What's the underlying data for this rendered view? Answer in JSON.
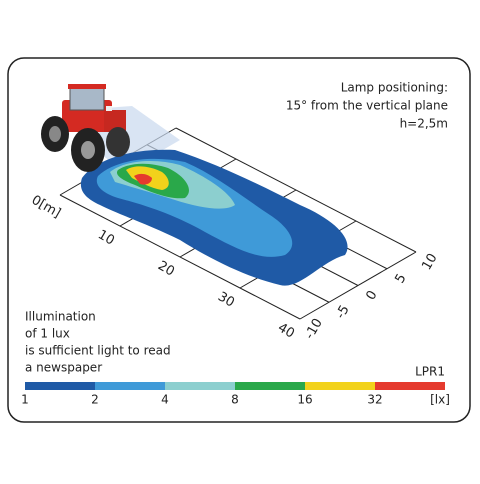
{
  "annotation": {
    "lines": [
      "Lamp positioning:",
      "15° from the vertical plane",
      "h=2,5m"
    ]
  },
  "note": {
    "lines": [
      "Illumination",
      "of 1 lux",
      "is sufficient light to read",
      "a newspaper"
    ]
  },
  "x_axis": {
    "labels": [
      "0[m]",
      "10",
      "20",
      "30",
      "40"
    ]
  },
  "y_axis": {
    "labels": [
      "10",
      "5",
      "0",
      "-5",
      "-10"
    ]
  },
  "scale": {
    "name": "LPR1",
    "unit": "[lx]",
    "ticks": [
      "1",
      "2",
      "4",
      "8",
      "16",
      "32"
    ],
    "colors": [
      "#1f5aa6",
      "#3f9ad8",
      "#8ccfcf",
      "#2aa84a",
      "#f2d21b",
      "#e53a2e"
    ]
  }
}
